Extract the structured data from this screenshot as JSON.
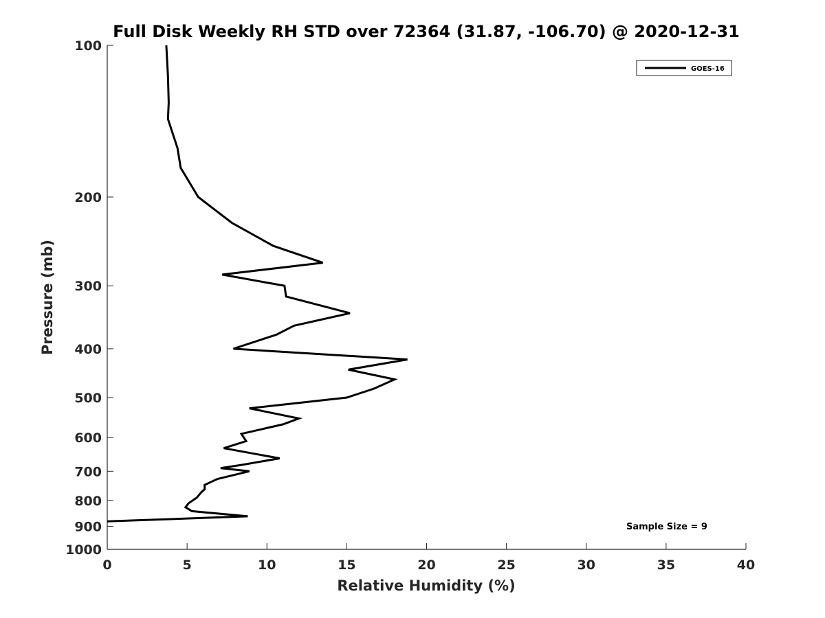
{
  "chart_data": {
    "type": "line",
    "title": "Full Disk Weekly RH STD over 72364 (31.87, -106.70) @ 2020-12-31",
    "xlabel": "Relative Humidity (%)",
    "ylabel": "Pressure (mb)",
    "xlim": [
      0,
      40
    ],
    "ylim": [
      100,
      1000
    ],
    "y_scale": "log",
    "y_reversed": true,
    "x_ticks": [
      0,
      5,
      10,
      15,
      20,
      25,
      30,
      35,
      40
    ],
    "x_tick_labels": [
      "0",
      "5",
      "10",
      "15",
      "20",
      "25",
      "30",
      "35",
      "40"
    ],
    "y_ticks": [
      100,
      200,
      300,
      400,
      500,
      600,
      700,
      800,
      900,
      1000
    ],
    "y_tick_labels": [
      "100",
      "200",
      "300",
      "400",
      "500",
      "600",
      "700",
      "800",
      "900",
      "1000"
    ],
    "grid": false,
    "legend_position": "top-right",
    "annotation": "Sample Size = 9",
    "series": [
      {
        "name": "GOES-16",
        "color": "#000000",
        "points": [
          [
            3.7,
            100
          ],
          [
            3.8,
            115
          ],
          [
            3.85,
            130
          ],
          [
            3.8,
            140
          ],
          [
            4.4,
            160
          ],
          [
            4.6,
            175
          ],
          [
            5.7,
            200
          ],
          [
            7.8,
            225
          ],
          [
            10.4,
            250
          ],
          [
            13.5,
            270
          ],
          [
            7.2,
            285
          ],
          [
            11.1,
            300
          ],
          [
            11.2,
            315
          ],
          [
            15.2,
            340
          ],
          [
            11.7,
            360
          ],
          [
            10.6,
            375
          ],
          [
            7.9,
            400
          ],
          [
            18.8,
            420
          ],
          [
            15.1,
            440
          ],
          [
            18.0,
            460
          ],
          [
            16.7,
            480
          ],
          [
            15.0,
            500
          ],
          [
            8.9,
            525
          ],
          [
            12.0,
            550
          ],
          [
            11.0,
            565
          ],
          [
            8.4,
            590
          ],
          [
            8.7,
            610
          ],
          [
            7.3,
            630
          ],
          [
            10.8,
            660
          ],
          [
            8.4,
            680
          ],
          [
            7.1,
            690
          ],
          [
            8.9,
            700
          ],
          [
            6.9,
            725
          ],
          [
            6.1,
            745
          ],
          [
            6.1,
            760
          ],
          [
            5.9,
            770
          ],
          [
            5.6,
            790
          ],
          [
            5.1,
            810
          ],
          [
            4.9,
            825
          ],
          [
            5.3,
            840
          ],
          [
            8.8,
            860
          ],
          [
            0.0,
            880
          ]
        ]
      }
    ]
  }
}
